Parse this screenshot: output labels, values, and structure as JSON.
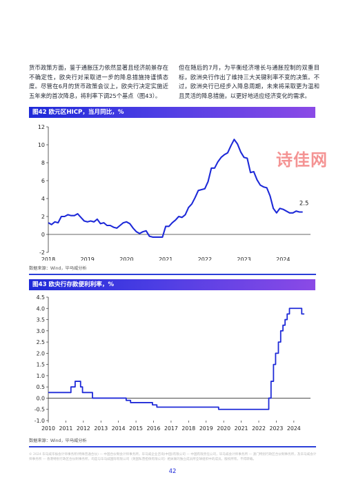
{
  "body": {
    "left_text": "货币政策方面，鉴于通胀压力依然显著且经济前景存在不确定性，欧央行对采取进一步的降息措施持谨慎态度。尽管在6月的货币政策会议上，欧央行决定实施近五年来的首次降息，将利率下调25个基点（图43）。",
    "right_text": "但在随后的7月，为平衡经济增长与通胀控制的双重目标，欧洲央行作出了维持三大关键利率不变的决策。不过，欧洲央行已经步入降息周期，未来将采取更为温和且灵活的降息措施，以更好地适应经济变化的需求。"
  },
  "fig42": {
    "title": "图42 欧元区HICP，当月同比，%",
    "source": "数据来源：Wind，毕马威分析",
    "end_label": "2.5"
  },
  "fig43": {
    "title": "图43 欧央行存款便利利率，%",
    "source": "数据来源：Wind，毕马威分析"
  },
  "watermark": "诗佳网",
  "footer_text": "© 2024 毕马威华振会计师事务所(特殊普通合伙) — 中国合伙制会计师事务所，毕马威企业咨询(中国)有限公司 — 中国有限责任公司，毕马威会计师事务所 — 澳门特别行政区合伙制事务所，及毕马威会计师事务所 — 香港特别行政区合伙制事务所，均是与毕马威国际有限公司（英国私营担保有限公司）相关联的独立成员所全球组织中的成员。版权所有，不得转载。",
  "page_number": "42",
  "chart_data": [
    {
      "type": "line",
      "title": "图42 欧元区HICP，当月同比，%",
      "xlabel": "",
      "ylabel": "",
      "x_ticks": [
        "2018",
        "2019",
        "2020",
        "2021",
        "2022",
        "2023",
        "2024"
      ],
      "ylim": [
        -2,
        12
      ],
      "y_ticks": [
        -2,
        0,
        2,
        4,
        6,
        8,
        10,
        12
      ],
      "grid": false,
      "color": "#1e2ad8",
      "series": [
        {
          "x": [
            2018.0,
            2018.083,
            2018.167,
            2018.25,
            2018.333,
            2018.417,
            2018.5,
            2018.583,
            2018.667,
            2018.75,
            2018.833,
            2018.917,
            2019.0,
            2019.083,
            2019.167,
            2019.25,
            2019.333,
            2019.417,
            2019.5,
            2019.583,
            2019.667,
            2019.75,
            2019.833,
            2019.917,
            2020.0,
            2020.083,
            2020.167,
            2020.25,
            2020.333,
            2020.417,
            2020.5,
            2020.583,
            2020.667,
            2020.75,
            2020.833,
            2020.917,
            2021.0,
            2021.083,
            2021.167,
            2021.25,
            2021.333,
            2021.417,
            2021.5,
            2021.583,
            2021.667,
            2021.75,
            2021.833,
            2021.917,
            2022.0,
            2022.083,
            2022.167,
            2022.25,
            2022.333,
            2022.417,
            2022.5,
            2022.583,
            2022.667,
            2022.75,
            2022.833,
            2022.917,
            2023.0,
            2023.083,
            2023.167,
            2023.25,
            2023.333,
            2023.417,
            2023.5,
            2023.583,
            2023.667,
            2023.75,
            2023.833,
            2023.917,
            2024.0,
            2024.083,
            2024.167,
            2024.25,
            2024.333,
            2024.417,
            2024.5
          ],
          "y": [
            1.3,
            1.1,
            1.4,
            1.3,
            2.0,
            2.0,
            2.2,
            2.1,
            2.1,
            2.3,
            1.9,
            1.5,
            1.4,
            1.5,
            1.4,
            1.7,
            1.2,
            1.3,
            1.0,
            1.0,
            0.8,
            0.7,
            1.0,
            1.3,
            1.4,
            1.2,
            0.7,
            0.3,
            0.1,
            0.3,
            0.4,
            -0.2,
            -0.3,
            -0.3,
            -0.3,
            -0.3,
            0.9,
            0.9,
            1.3,
            1.6,
            2.0,
            1.9,
            2.2,
            3.0,
            3.4,
            4.1,
            4.9,
            5.0,
            5.1,
            5.9,
            7.4,
            7.4,
            8.1,
            8.6,
            8.9,
            9.1,
            9.9,
            10.6,
            10.1,
            9.2,
            8.6,
            8.5,
            6.9,
            7.0,
            6.1,
            5.5,
            5.3,
            5.2,
            4.3,
            2.9,
            2.4,
            2.9,
            2.8,
            2.6,
            2.4,
            2.4,
            2.6,
            2.5,
            2.5
          ]
        }
      ],
      "annotations": [
        "2.5"
      ]
    },
    {
      "type": "line",
      "title": "图43 欧央行存款便利利率，%",
      "xlabel": "",
      "ylabel": "",
      "x_ticks": [
        "2010",
        "2011",
        "2012",
        "2013",
        "2014",
        "2015",
        "2016",
        "2017",
        "2018",
        "2019",
        "2020",
        "2021",
        "2022",
        "2023",
        "2024"
      ],
      "ylim": [
        -1.0,
        4.5
      ],
      "y_ticks": [
        -1.0,
        -0.5,
        0.0,
        0.5,
        1.0,
        1.5,
        2.0,
        2.5,
        3.0,
        3.5,
        4.0,
        4.5
      ],
      "grid": false,
      "step": true,
      "color": "#1e2ad8",
      "series": [
        {
          "x": [
            2010.0,
            2011.29,
            2011.53,
            2011.84,
            2011.95,
            2012.52,
            2014.44,
            2014.69,
            2015.94,
            2016.19,
            2019.71,
            2022.57,
            2022.7,
            2022.84,
            2022.96,
            2023.12,
            2023.25,
            2023.38,
            2023.5,
            2023.62,
            2023.75,
            2024.45,
            2024.6
          ],
          "y": [
            0.25,
            0.5,
            0.75,
            0.5,
            0.25,
            0.0,
            -0.1,
            -0.2,
            -0.3,
            -0.4,
            -0.5,
            0.0,
            0.75,
            1.5,
            2.0,
            2.5,
            3.0,
            3.25,
            3.5,
            3.75,
            4.0,
            3.75,
            3.75
          ]
        }
      ]
    }
  ]
}
